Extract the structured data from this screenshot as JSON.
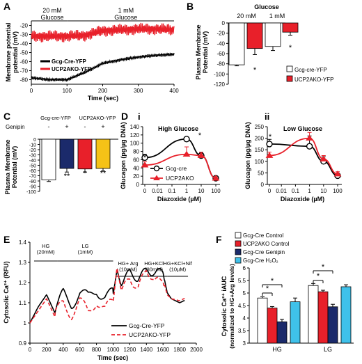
{
  "panels": {
    "A": {
      "letter": "A",
      "ylabel": "Membrane potential (mV)",
      "xlabel": "Time (sec)",
      "cond1": "20 mM\nGlucose",
      "cond2": "1 mM\nGlucose",
      "xticks": [
        "0",
        "100",
        "200",
        "300",
        "400"
      ],
      "yticks": [
        "-20",
        "-30",
        "-40",
        "-50",
        "-60",
        "-70",
        "-80"
      ],
      "legend": [
        "Gcg-Cre-YFP",
        "UCP2AKO-YFP"
      ]
    },
    "B": {
      "letter": "B",
      "title": "Glucose",
      "groups": [
        "20 mM",
        "1 mM"
      ],
      "ylabel": "Plasma Membrane Potential (mV)",
      "yticks": [
        "0",
        "-20",
        "-40",
        "-60",
        "-80",
        "-100",
        "-120"
      ],
      "legend": [
        "Gcg-cre-YFP",
        "UCP2AKO-YFP"
      ],
      "star": "*"
    },
    "C": {
      "letter": "C",
      "groups": [
        "Gcg-cre-YFP",
        "UCP2AKO-YFP"
      ],
      "row_label": "Genipin",
      "signs": [
        "-",
        "+",
        "-",
        "+"
      ],
      "ylabel": "Plasma Membrane Potential (mV)",
      "yticks": [
        "0",
        "-10",
        "-20",
        "-30",
        "-40",
        "-50",
        "-60",
        "-70",
        "-80",
        "-90",
        "-100"
      ],
      "stars": [
        "**",
        "*",
        "**"
      ]
    },
    "D": {
      "letter": "D",
      "sub_i": "i",
      "sub_ii": "ii",
      "title_i": "High Glucose",
      "title_ii": "Low Glucose",
      "ylabel": "Glucagon (pg/µg DNA)",
      "xlabel": "Diazoxide (µM)",
      "xticks": [
        "0",
        "0.01",
        "0.1",
        "1",
        "10",
        "100"
      ],
      "yticks_i": [
        "0",
        "20",
        "40",
        "60",
        "80",
        "100",
        "120",
        "140"
      ],
      "yticks_ii": [
        "0",
        "50",
        "100",
        "150",
        "200",
        "250"
      ],
      "legend": [
        "Gcg-cre",
        "UCP2AKO"
      ],
      "star": "*"
    },
    "E": {
      "letter": "E",
      "ylabel": "Cytosolic Ca²⁺ (RFU)",
      "xlabel": "Time (sec)",
      "xticks": [
        "0",
        "200",
        "400",
        "600",
        "800",
        "1000",
        "1200",
        "1400",
        "1600",
        "1800",
        "2000"
      ],
      "yticks": [
        "0.9",
        "1",
        "1.1",
        "1.2",
        "1.3",
        "1.4"
      ],
      "conditions": [
        "HG\n(20mM)",
        "LG\n(1mM)",
        "HG+ Arg\n(10mM)",
        "HG+KCl\n(30mM)",
        "HG+KCl+Nif\n(10µM)"
      ],
      "legend": [
        "Gcg-Cre-YFP",
        "UCP2AKO-YFP"
      ]
    },
    "F": {
      "letter": "F",
      "ylabel": "Cytosolic Ca²⁺ iAUC (normalized to HG+Arg levels)",
      "yticks": [
        "3",
        "3.5",
        "4",
        "4.5",
        "5",
        "5.5",
        "6"
      ],
      "groups": [
        "HG",
        "LG"
      ],
      "legend": [
        "Gcg-Cre Control",
        "UCP2AKO Control",
        "Gcg-Cre Genipin",
        "Gcg-Cre H₂O₂"
      ],
      "star": "*"
    }
  },
  "colors": {
    "red": "#e8202a",
    "navy": "#1b2a6b",
    "yellow": "#f5c217",
    "cyan": "#3fc1ea",
    "black": "#000000",
    "white": "#ffffff"
  },
  "chart_data": [
    {
      "panel": "A",
      "type": "line",
      "xlabel": "Time (sec)",
      "ylabel": "Membrane potential (mV)",
      "xlim": [
        0,
        400
      ],
      "ylim": [
        -85,
        -15
      ],
      "series": [
        {
          "name": "Gcg-Cre-YFP",
          "x": [
            0,
            50,
            100,
            150,
            200,
            250,
            300,
            350,
            400
          ],
          "y": [
            -78,
            -80,
            -80,
            -72,
            -62,
            -58,
            -55,
            -53,
            -52
          ]
        },
        {
          "name": "UCP2AKO-YFP",
          "x": [
            0,
            50,
            100,
            150,
            200,
            250,
            300,
            350,
            400
          ],
          "y": [
            -32,
            -32,
            -32,
            -31,
            -26,
            -25,
            -24,
            -24,
            -25
          ]
        }
      ]
    },
    {
      "panel": "B",
      "type": "bar",
      "categories": [
        "20 mM",
        "1 mM"
      ],
      "ylim": [
        -120,
        0
      ],
      "ylabel": "Plasma Membrane Potential (mV)",
      "series": [
        {
          "name": "Gcg-cre-YFP",
          "values": [
            -82,
            -46
          ],
          "errors": [
            2,
            8
          ]
        },
        {
          "name": "UCP2AKO-YFP",
          "values": [
            -50,
            -18
          ],
          "errors": [
            12,
            6
          ]
        }
      ]
    },
    {
      "panel": "C",
      "type": "bar",
      "categories": [
        "Gcg-cre-YFP -",
        "Gcg-cre-YFP +",
        "UCP2AKO-YFP -",
        "UCP2AKO-YFP +"
      ],
      "values": [
        -78,
        -56,
        -57,
        -56
      ],
      "errors": [
        3,
        7,
        6,
        5
      ],
      "ylim": [
        -100,
        0
      ],
      "ylabel": "Plasma Membrane Potential (mV)"
    },
    {
      "panel": "D i",
      "type": "line",
      "title": "High Glucose",
      "xlabel": "Diazoxide (µM)",
      "ylabel": "Glucagon (pg/µg DNA)",
      "x": [
        "0",
        "1",
        "10",
        "100"
      ],
      "ylim": [
        0,
        140
      ],
      "xscale": "log",
      "series": [
        {
          "name": "Gcg-cre",
          "values": [
            65,
            110,
            70,
            15
          ],
          "errors": [
            8,
            5,
            8,
            3
          ]
        },
        {
          "name": "UCP2AKO",
          "values": [
            47,
            73,
            70,
            15
          ],
          "errors": [
            8,
            18,
            8,
            3
          ]
        }
      ]
    },
    {
      "panel": "D ii",
      "type": "line",
      "title": "Low Glucose",
      "xlabel": "Diazoxide (µM)",
      "ylabel": "Glucagon (pg/µg DNA)",
      "x": [
        "0",
        "1",
        "10",
        "100"
      ],
      "ylim": [
        0,
        250
      ],
      "xscale": "log",
      "series": [
        {
          "name": "Gcg-cre",
          "values": [
            175,
            165,
            100,
            38
          ],
          "errors": [
            20,
            45,
            20,
            10
          ]
        },
        {
          "name": "UCP2AKO",
          "values": [
            125,
            200,
            110,
            45
          ],
          "errors": [
            15,
            25,
            15,
            10
          ]
        }
      ]
    },
    {
      "panel": "E",
      "type": "line",
      "xlabel": "Time (sec)",
      "ylabel": "Cytosolic Ca²⁺ (RFU)",
      "xlim": [
        0,
        2000
      ],
      "ylim": [
        0.9,
        1.4
      ],
      "series": [
        {
          "name": "Gcg-Cre-YFP",
          "x": [
            0,
            100,
            200,
            300,
            400,
            500,
            600,
            700,
            800,
            900,
            1000,
            1050,
            1100,
            1200,
            1300,
            1400,
            1500,
            1600,
            1650,
            1700,
            1800,
            1850
          ],
          "y": [
            1.0,
            1.08,
            1.14,
            1.05,
            1.14,
            1.1,
            1.15,
            1.12,
            1.17,
            1.13,
            1.14,
            1.27,
            1.2,
            1.25,
            1.22,
            1.26,
            1.25,
            1.25,
            1.15,
            1.12,
            1.1,
            1.11
          ]
        },
        {
          "name": "UCP2AKO-YFP",
          "x": [
            0,
            100,
            200,
            300,
            400,
            500,
            600,
            700,
            800,
            900,
            1000,
            1050,
            1100,
            1200,
            1300,
            1400,
            1500,
            1600,
            1650,
            1700,
            1800,
            1850
          ],
          "y": [
            1.0,
            1.06,
            1.12,
            1.03,
            1.1,
            1.05,
            1.1,
            1.05,
            1.12,
            1.06,
            1.1,
            1.29,
            1.16,
            1.22,
            1.17,
            1.27,
            1.2,
            1.22,
            1.14,
            1.12,
            1.11,
            1.12
          ]
        }
      ]
    },
    {
      "panel": "F",
      "type": "bar",
      "categories": [
        "HG",
        "LG"
      ],
      "ylim": [
        3,
        6
      ],
      "ylabel": "Cytosolic Ca²⁺ iAUC (normalized to HG+Arg levels)",
      "series": [
        {
          "name": "Gcg-Cre Control",
          "values": [
            4.8,
            5.3
          ],
          "errors": [
            0.05,
            0.08
          ]
        },
        {
          "name": "UCP2AKO Control",
          "values": [
            4.4,
            5.05
          ],
          "errors": [
            0.06,
            0.06
          ]
        },
        {
          "name": "Gcg-Cre Genipin",
          "values": [
            3.85,
            4.45
          ],
          "errors": [
            0.1,
            0.1
          ]
        },
        {
          "name": "Gcg-Cre H₂O₂",
          "values": [
            4.65,
            5.25
          ],
          "errors": [
            0.15,
            0.08
          ]
        }
      ]
    }
  ]
}
